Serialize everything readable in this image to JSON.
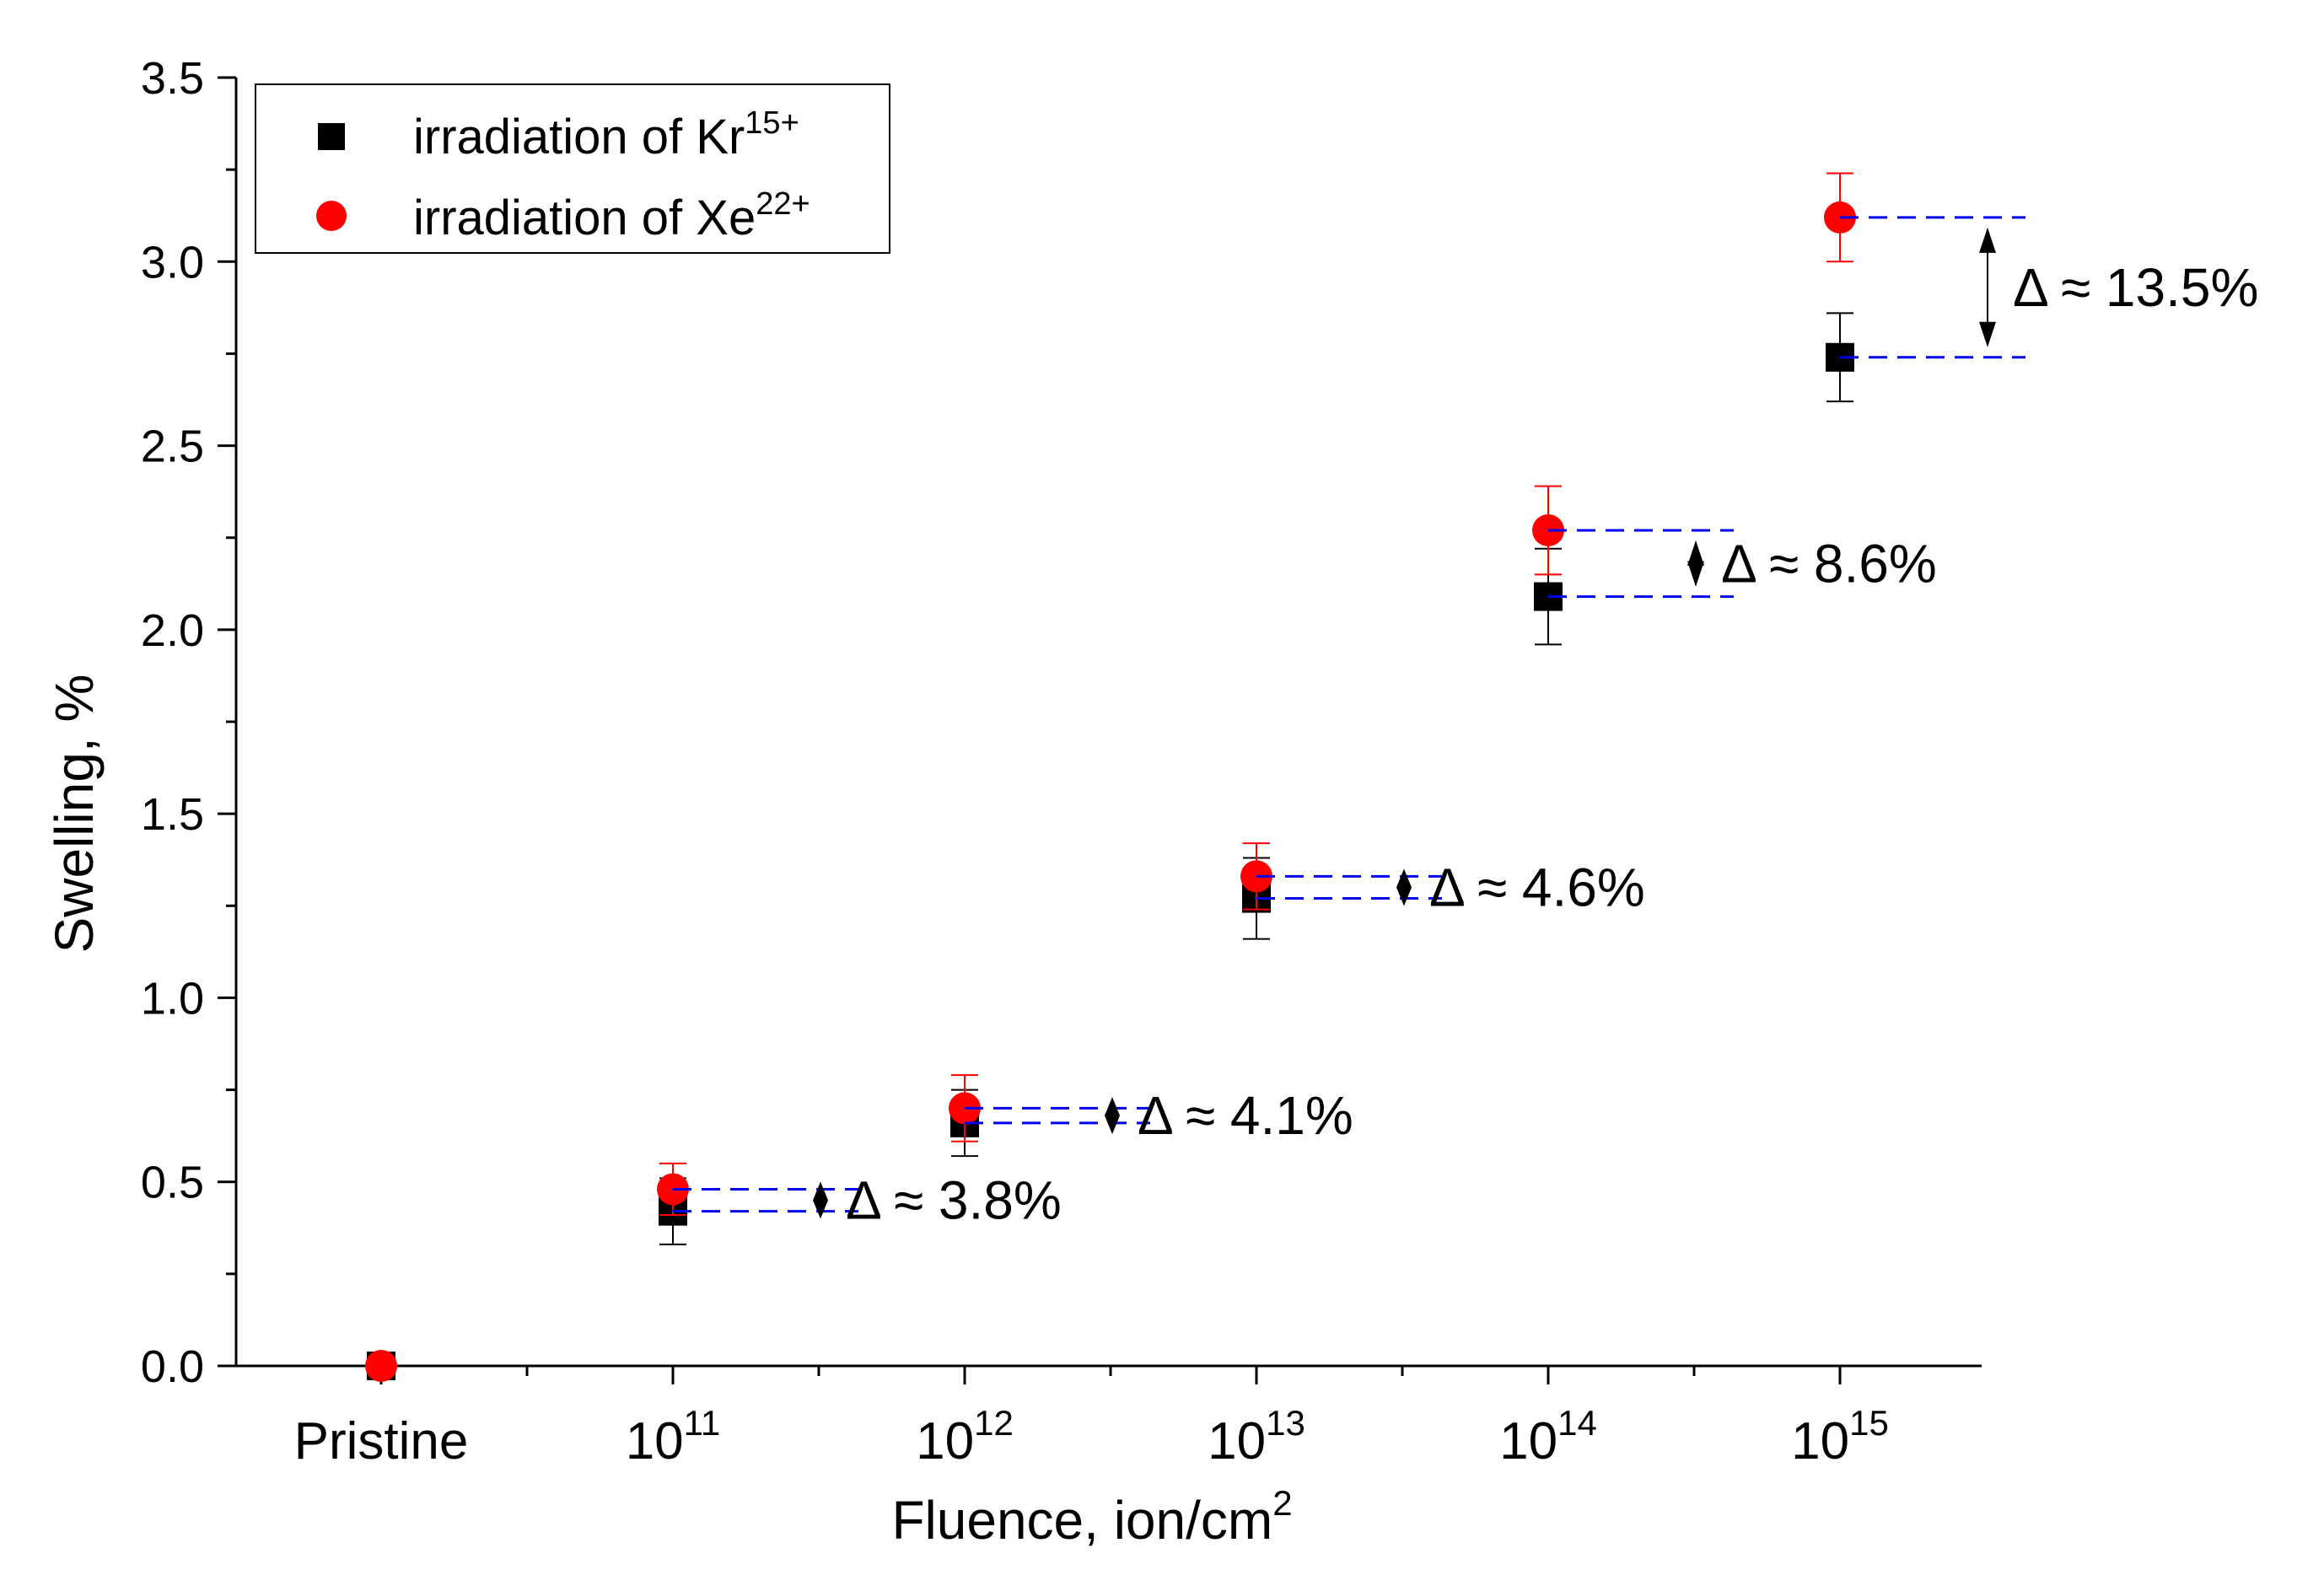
{
  "chart_data": {
    "type": "scatter",
    "title": "",
    "xlabel": "Fluence, ion/cm",
    "xlabel_sup": "2",
    "ylabel": "Swelling, %",
    "ylim": [
      0,
      3.5
    ],
    "yticks": [
      "0.0",
      "0.5",
      "1.0",
      "1.5",
      "2.0",
      "2.5",
      "3.0",
      "3.5"
    ],
    "categories": [
      {
        "base": "Pristine",
        "exp": ""
      },
      {
        "base": "10",
        "exp": "11"
      },
      {
        "base": "10",
        "exp": "12"
      },
      {
        "base": "10",
        "exp": "13"
      },
      {
        "base": "10",
        "exp": "14"
      },
      {
        "base": "10",
        "exp": "15"
      }
    ],
    "series": [
      {
        "name": "irradiation of Kr",
        "sup": "15+",
        "marker": "square",
        "color": "#000000",
        "errorColor": "#000000",
        "values": [
          0.0,
          0.42,
          0.66,
          1.27,
          2.09,
          2.74
        ],
        "errors": [
          0.0,
          0.09,
          0.09,
          0.11,
          0.13,
          0.12
        ]
      },
      {
        "name": "irradiation of Xe",
        "sup": "22+",
        "marker": "circle",
        "color": "#ff0000",
        "errorColor": "#ff0000",
        "values": [
          0.0,
          0.48,
          0.7,
          1.33,
          2.27,
          3.12
        ],
        "errors": [
          0.0,
          0.07,
          0.09,
          0.09,
          0.12,
          0.12
        ]
      }
    ],
    "annotations": [
      {
        "index": 1,
        "label": "Δ ≈ 3.8%"
      },
      {
        "index": 2,
        "label": "Δ ≈ 4.1%"
      },
      {
        "index": 3,
        "label": "Δ ≈ 4.6%"
      },
      {
        "index": 4,
        "label": "Δ ≈ 8.6%"
      },
      {
        "index": 5,
        "label": "Δ ≈ 13.5%"
      }
    ],
    "legend": "top-left",
    "grid": false,
    "dashColor": "#0000ee"
  }
}
